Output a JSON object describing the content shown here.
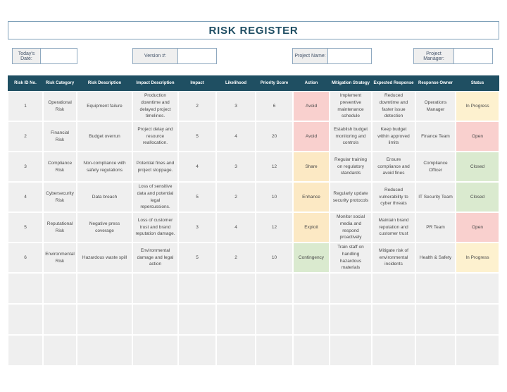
{
  "title": "RISK REGISTER",
  "fields": [
    {
      "label": "Today's Date:",
      "value": ""
    },
    {
      "label": "Version #:",
      "value": ""
    },
    {
      "label": "Project Name:",
      "value": ""
    },
    {
      "label": "Project Manager:",
      "value": ""
    }
  ],
  "colors": {
    "header_bg": "#1f4f62",
    "title_color": "#1f4e63",
    "cell_bg": "#efefef",
    "field_border": "#8fa9c0",
    "action_avoid_pink": "#f9d0ce",
    "action_yellow": "#fce9c4",
    "action_green": "#daeacf",
    "status_open_pink": "#f9d0ce",
    "status_inprogress_cream": "#fdf1cf",
    "status_closed_green": "#daeacf"
  },
  "table": {
    "columns": [
      "Risk ID No.",
      "Risk Category",
      "Risk Description",
      "Impact Description",
      "Impact",
      "Likelihood",
      "Priority Score",
      "Action",
      "Mitigation Strategy",
      "Expected Response",
      "Response Owner",
      "Status"
    ],
    "empty_row_count": 3,
    "rows": [
      {
        "risk_id": "1",
        "category": "Operational Risk",
        "description": "Equipment failure",
        "impact_description": "Production downtime and delayed project timelines.",
        "impact": "2",
        "likelihood": "3",
        "priority_score": "6",
        "action": "Avoid",
        "action_color": "#f9d0ce",
        "mitigation": "Implement preventive maintenance schedule",
        "expected_response": "Reduced downtime and faster issue detection",
        "owner": "Operations Manager",
        "status": "In Progress",
        "status_color": "#fdf1cf"
      },
      {
        "risk_id": "2",
        "category": "Financial Risk",
        "description": "Budget overrun",
        "impact_description": "Project delay and resource reallocation.",
        "impact": "5",
        "likelihood": "4",
        "priority_score": "20",
        "action": "Avoid",
        "action_color": "#f9d0ce",
        "mitigation": "Establish budget monitoring and controls",
        "expected_response": "Keep budget within approved limits",
        "owner": "Finance Team",
        "status": "Open",
        "status_color": "#f9d0ce"
      },
      {
        "risk_id": "3",
        "category": "Compliance Risk",
        "description": "Non-compliance with safety regulations",
        "impact_description": "Potential fines and project stoppage.",
        "impact": "4",
        "likelihood": "3",
        "priority_score": "12",
        "action": "Share",
        "action_color": "#fce9c4",
        "mitigation": "Regular training on regulatory standards",
        "expected_response": "Ensure compliance and avoid fines",
        "owner": "Compliance Officer",
        "status": "Closed",
        "status_color": "#daeacf"
      },
      {
        "risk_id": "4",
        "category": "Cybersecurity Risk",
        "description": "Data breach",
        "impact_description": "Loss of sensitive data and potential legal repercussions.",
        "impact": "5",
        "likelihood": "2",
        "priority_score": "10",
        "action": "Enhance",
        "action_color": "#fce9c4",
        "mitigation": "Regularly update security protocols",
        "expected_response": "Reduced vulnerability to cyber threats",
        "owner": "IT Security Team",
        "status": "Closed",
        "status_color": "#daeacf"
      },
      {
        "risk_id": "5",
        "category": "Reputational Risk",
        "description": "Negative press coverage",
        "impact_description": "Loss of customer trust and brand reputation damage.",
        "impact": "3",
        "likelihood": "4",
        "priority_score": "12",
        "action": "Exploit",
        "action_color": "#fce9c4",
        "mitigation": "Monitor social media and respond proactively",
        "expected_response": "Maintain brand reputation and customer trust",
        "owner": "PR Team",
        "status": "Open",
        "status_color": "#f9d0ce"
      },
      {
        "risk_id": "6",
        "category": "Environmental Risk",
        "description": "Hazardous waste spill",
        "impact_description": "Environmental damage and legal action",
        "impact": "5",
        "likelihood": "2",
        "priority_score": "10",
        "action": "Contingency",
        "action_color": "#daeacf",
        "mitigation": "Train staff on handling hazardous materials",
        "expected_response": "Mitigate risk of environmental incidents",
        "owner": "Health & Safety",
        "status": "In Progress",
        "status_color": "#fdf1cf"
      }
    ]
  }
}
